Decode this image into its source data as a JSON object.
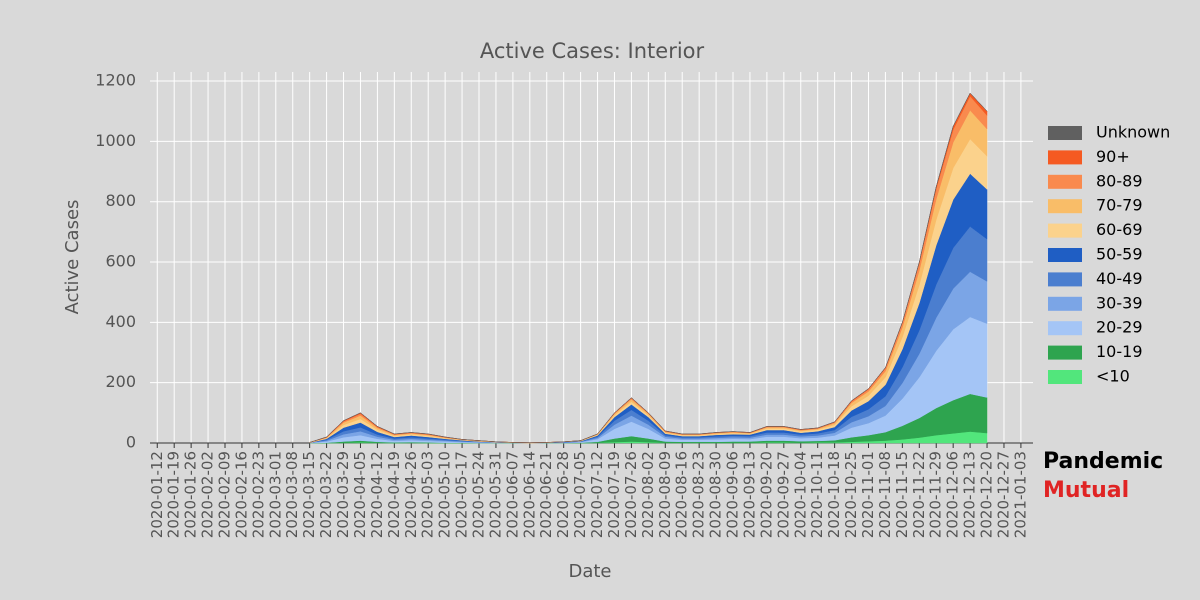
{
  "chart_data": {
    "type": "stacked_area",
    "title": "Active Cases: Interior",
    "x_label": "Date",
    "y_label": "Active Cases",
    "brand": [
      "Pandemic",
      "Mutual"
    ],
    "x": [
      "2020-03-15",
      "2020-03-22",
      "2020-03-29",
      "2020-04-05",
      "2020-04-12",
      "2020-04-19",
      "2020-04-26",
      "2020-05-03",
      "2020-05-10",
      "2020-05-17",
      "2020-05-24",
      "2020-05-31",
      "2020-06-07",
      "2020-06-14",
      "2020-06-21",
      "2020-06-28",
      "2020-07-05",
      "2020-07-12",
      "2020-07-19",
      "2020-07-26",
      "2020-08-02",
      "2020-08-09",
      "2020-08-16",
      "2020-08-23",
      "2020-08-30",
      "2020-09-06",
      "2020-09-13",
      "2020-09-20",
      "2020-09-27",
      "2020-10-04",
      "2020-10-11",
      "2020-10-18",
      "2020-10-25",
      "2020-11-01",
      "2020-11-08",
      "2020-11-15",
      "2020-11-22",
      "2020-11-29",
      "2020-12-06",
      "2020-12-13",
      "2020-12-20"
    ],
    "series": [
      {
        "name": "<10",
        "color": "#52e67c",
        "values": [
          0,
          0,
          1,
          2,
          1,
          0,
          1,
          0,
          0,
          0,
          0,
          0,
          0,
          0,
          0,
          0,
          0,
          1,
          3,
          5,
          3,
          1,
          1,
          1,
          1,
          1,
          1,
          2,
          2,
          1,
          2,
          2,
          4,
          6,
          8,
          12,
          18,
          26,
          32,
          38,
          33
        ]
      },
      {
        "name": "10-19",
        "color": "#2ea44f",
        "values": [
          0,
          1,
          4,
          6,
          3,
          2,
          2,
          2,
          1,
          1,
          0,
          0,
          0,
          0,
          0,
          0,
          1,
          3,
          12,
          18,
          12,
          4,
          3,
          3,
          3,
          4,
          4,
          6,
          6,
          5,
          5,
          7,
          15,
          20,
          28,
          45,
          65,
          90,
          110,
          125,
          118
        ]
      },
      {
        "name": "20-29",
        "color": "#a4c5f6",
        "values": [
          1,
          4,
          14,
          18,
          10,
          5,
          6,
          5,
          4,
          2,
          2,
          1,
          1,
          0,
          1,
          1,
          2,
          9,
          32,
          48,
          32,
          10,
          7,
          7,
          8,
          9,
          8,
          13,
          13,
          10,
          11,
          16,
          32,
          40,
          55,
          90,
          135,
          190,
          235,
          255,
          245
        ]
      },
      {
        "name": "30-39",
        "color": "#7ba5e6",
        "values": [
          0,
          3,
          10,
          13,
          7,
          4,
          5,
          4,
          3,
          2,
          1,
          1,
          0,
          0,
          0,
          1,
          1,
          4,
          14,
          20,
          14,
          6,
          4,
          4,
          5,
          5,
          5,
          7,
          7,
          6,
          7,
          9,
          18,
          23,
          32,
          52,
          78,
          110,
          135,
          150,
          140
        ]
      },
      {
        "name": "40-49",
        "color": "#4b7ecf",
        "values": [
          0,
          3,
          10,
          13,
          7,
          4,
          5,
          4,
          3,
          2,
          1,
          1,
          0,
          0,
          0,
          1,
          1,
          4,
          13,
          19,
          13,
          5,
          4,
          4,
          5,
          5,
          5,
          7,
          7,
          6,
          7,
          9,
          18,
          23,
          32,
          52,
          78,
          110,
          135,
          150,
          140
        ]
      },
      {
        "name": "50-59",
        "color": "#1f5ec4",
        "values": [
          0,
          3,
          12,
          16,
          9,
          5,
          6,
          5,
          3,
          2,
          1,
          0,
          0,
          0,
          0,
          1,
          1,
          4,
          12,
          18,
          12,
          5,
          4,
          4,
          5,
          5,
          5,
          8,
          8,
          6,
          7,
          10,
          21,
          27,
          38,
          60,
          90,
          130,
          160,
          175,
          165
        ]
      },
      {
        "name": "60-69",
        "color": "#fbd28c",
        "values": [
          0,
          2,
          9,
          12,
          7,
          4,
          4,
          4,
          2,
          1,
          1,
          0,
          0,
          0,
          0,
          0,
          1,
          2,
          6,
          9,
          6,
          3,
          3,
          3,
          3,
          4,
          3,
          5,
          5,
          5,
          5,
          7,
          14,
          18,
          25,
          40,
          60,
          85,
          105,
          115,
          110
        ]
      },
      {
        "name": "70-79",
        "color": "#f9bd68",
        "values": [
          1,
          2,
          8,
          11,
          6,
          3,
          3,
          3,
          2,
          1,
          1,
          1,
          1,
          1,
          1,
          0,
          1,
          2,
          5,
          8,
          5,
          3,
          2,
          2,
          3,
          3,
          2,
          4,
          4,
          3,
          3,
          6,
          11,
          14,
          20,
          32,
          48,
          68,
          85,
          95,
          90
        ]
      },
      {
        "name": "80-89",
        "color": "#f98a4e",
        "values": [
          0,
          1,
          4,
          6,
          3,
          2,
          2,
          2,
          1,
          1,
          1,
          0,
          0,
          0,
          0,
          0,
          0,
          1,
          2,
          4,
          2,
          2,
          1,
          1,
          1,
          1,
          1,
          2,
          2,
          2,
          2,
          3,
          5,
          7,
          10,
          15,
          24,
          34,
          42,
          47,
          45
        ]
      },
      {
        "name": "90+",
        "color": "#f55a22",
        "values": [
          0,
          1,
          2,
          3,
          2,
          1,
          1,
          1,
          1,
          0,
          0,
          0,
          0,
          0,
          0,
          0,
          0,
          0,
          1,
          1,
          1,
          1,
          1,
          1,
          1,
          1,
          1,
          1,
          1,
          1,
          1,
          1,
          2,
          2,
          2,
          2,
          4,
          7,
          11,
          10,
          14
        ]
      },
      {
        "name": "Unknown",
        "color": "#606060",
        "values": [
          0,
          0,
          0,
          0,
          0,
          0,
          0,
          0,
          0,
          0,
          0,
          0,
          0,
          0,
          0,
          0,
          0,
          0,
          0,
          0,
          0,
          0,
          0,
          0,
          0,
          0,
          0,
          0,
          0,
          0,
          0,
          0,
          0,
          0,
          0,
          0,
          0,
          0,
          0,
          0,
          0
        ]
      }
    ],
    "xlim": [
      "2020-01-09",
      "2021-01-08"
    ],
    "xticks": [
      "2020-01-12",
      "2020-01-19",
      "2020-01-26",
      "2020-02-02",
      "2020-02-09",
      "2020-02-16",
      "2020-02-23",
      "2020-03-01",
      "2020-03-08",
      "2020-03-15",
      "2020-03-22",
      "2020-03-29",
      "2020-04-05",
      "2020-04-12",
      "2020-04-19",
      "2020-04-26",
      "2020-05-03",
      "2020-05-10",
      "2020-05-17",
      "2020-05-24",
      "2020-05-31",
      "2020-06-07",
      "2020-06-14",
      "2020-06-21",
      "2020-06-28",
      "2020-07-05",
      "2020-07-12",
      "2020-07-19",
      "2020-07-26",
      "2020-08-02",
      "2020-08-09",
      "2020-08-16",
      "2020-08-23",
      "2020-08-30",
      "2020-09-06",
      "2020-09-13",
      "2020-09-20",
      "2020-09-27",
      "2020-10-04",
      "2020-10-11",
      "2020-10-18",
      "2020-10-25",
      "2020-11-01",
      "2020-11-08",
      "2020-11-15",
      "2020-11-22",
      "2020-11-29",
      "2020-12-06",
      "2020-12-13",
      "2020-12-20",
      "2020-12-27",
      "2021-01-03"
    ],
    "ylim": [
      0,
      1230
    ],
    "yticks": [
      0,
      200,
      400,
      600,
      800,
      1000,
      1200
    ],
    "grid": true,
    "legend": "right"
  }
}
